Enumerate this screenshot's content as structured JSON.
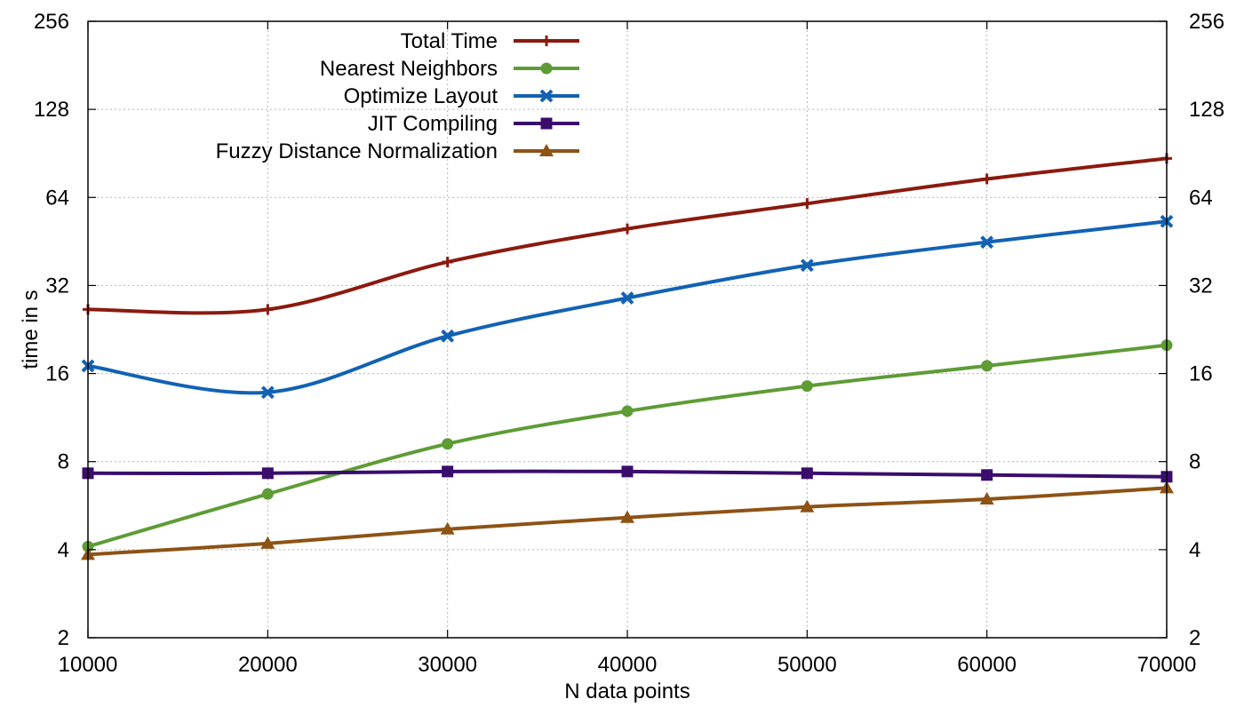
{
  "chart_data": {
    "type": "line",
    "title": "",
    "xlabel": "N data points",
    "ylabel": "time in s",
    "x": [
      10000,
      20000,
      30000,
      40000,
      50000,
      60000,
      70000
    ],
    "xlim": [
      10000,
      70000
    ],
    "xticks": [
      "10000",
      "20000",
      "30000",
      "40000",
      "50000",
      "60000",
      "70000"
    ],
    "ylim": [
      2,
      256
    ],
    "yscale": "log2",
    "yticks": [
      "2",
      "4",
      "8",
      "16",
      "32",
      "64",
      "128",
      "256"
    ],
    "y2ticks": [
      "2",
      "4",
      "8",
      "16",
      "32",
      "64",
      "128",
      "256"
    ],
    "grid": true,
    "legend_position": "top-center",
    "series": [
      {
        "name": "Total Time",
        "color": "#8b1a0e",
        "marker": "plus",
        "values": [
          26.5,
          26.5,
          38.5,
          50,
          61,
          74,
          87
        ]
      },
      {
        "name": "Nearest Neighbors",
        "color": "#5e9c36",
        "marker": "circle",
        "values": [
          4.1,
          6.2,
          9.2,
          11.9,
          14.5,
          17,
          20
        ]
      },
      {
        "name": "Optimize Layout",
        "color": "#1262b3",
        "marker": "cross",
        "values": [
          17,
          13.8,
          21.5,
          29,
          37.5,
          45,
          53
        ]
      },
      {
        "name": "JIT Compiling",
        "color": "#3a0d6d",
        "marker": "square",
        "values": [
          7.3,
          7.3,
          7.4,
          7.4,
          7.3,
          7.2,
          7.1
        ]
      },
      {
        "name": "Fuzzy Distance Normalization",
        "color": "#8d5315",
        "marker": "triangle",
        "values": [
          3.85,
          4.2,
          4.7,
          5.15,
          5.6,
          5.95,
          6.5
        ]
      }
    ]
  }
}
